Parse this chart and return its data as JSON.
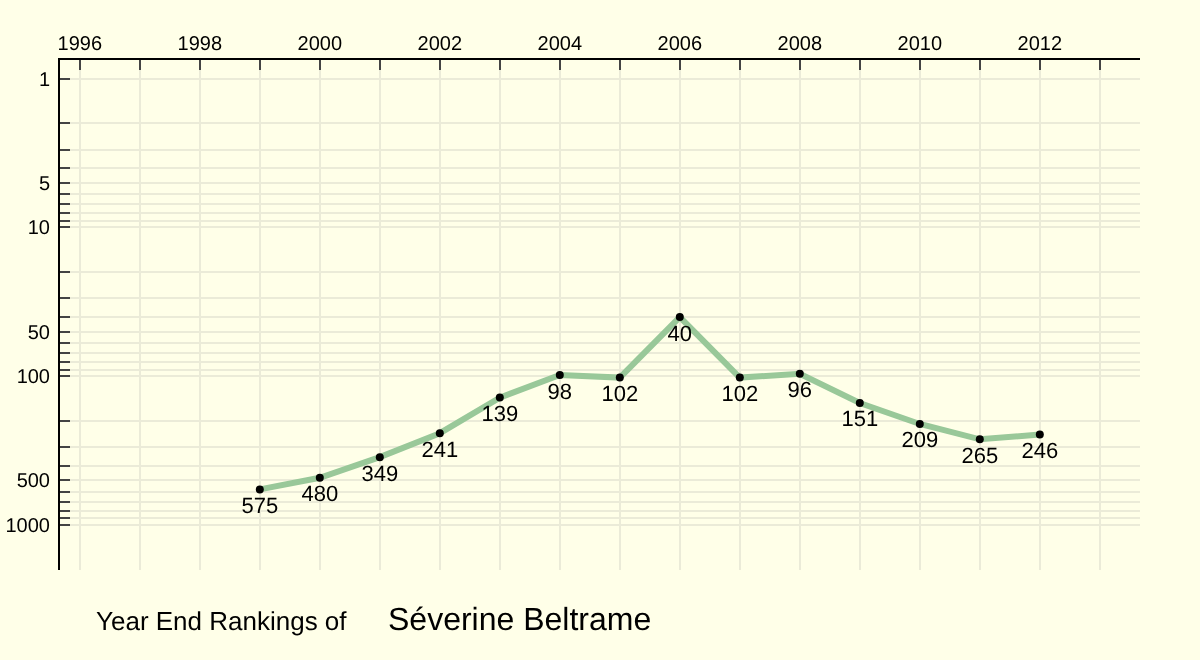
{
  "chart_data": {
    "type": "line",
    "title": "Year End Rankings of",
    "subtitle": "Séverine Beltrame",
    "x": [
      1999,
      2000,
      2001,
      2002,
      2003,
      2004,
      2005,
      2006,
      2007,
      2008,
      2009,
      2010,
      2011,
      2012
    ],
    "series": [
      {
        "color": "#99c899",
        "values": [
          575,
          480,
          349,
          241,
          139,
          98,
          102,
          40,
          102,
          96,
          151,
          209,
          265,
          246
        ]
      }
    ],
    "data_labels": true,
    "marker": "circle",
    "line_style": "solid",
    "log": "y",
    "grid": true,
    "legend": false,
    "xlim": [
      1995.67,
      2013.67
    ],
    "xticks": [
      1996,
      {
        "value": 1997,
        "label": null
      },
      1998,
      {
        "value": 1999,
        "label": null
      },
      2000,
      {
        "value": 2001,
        "label": null
      },
      2002,
      {
        "value": 2003,
        "label": null
      },
      2004,
      {
        "value": 2005,
        "label": null
      },
      2006,
      {
        "value": 2007,
        "label": null
      },
      2008,
      {
        "value": 2009,
        "label": null
      },
      2010,
      {
        "value": 2011,
        "label": null
      },
      2012,
      {
        "value": 2013,
        "label": null
      }
    ],
    "ylim": [
      2000,
      0.75
    ],
    "yticks": [
      1,
      {
        "value": 2,
        "label": null
      },
      {
        "value": 3,
        "label": null
      },
      {
        "value": 4,
        "label": null
      },
      5,
      {
        "value": 6,
        "label": null
      },
      {
        "value": 7,
        "label": null
      },
      {
        "value": 8,
        "label": null
      },
      {
        "value": 9,
        "label": null
      },
      10,
      {
        "value": 20,
        "label": null
      },
      {
        "value": 30,
        "label": null
      },
      {
        "value": 40,
        "label": null
      },
      50,
      {
        "value": 60,
        "label": null
      },
      {
        "value": 70,
        "label": null
      },
      {
        "value": 80,
        "label": null
      },
      {
        "value": 90,
        "label": null
      },
      100,
      {
        "value": 200,
        "label": null
      },
      {
        "value": 300,
        "label": null
      },
      {
        "value": 400,
        "label": null
      },
      500,
      {
        "value": 600,
        "label": null
      },
      {
        "value": 700,
        "label": null
      },
      {
        "value": 800,
        "label": null
      },
      {
        "value": 900,
        "label": null
      },
      1000
    ]
  }
}
